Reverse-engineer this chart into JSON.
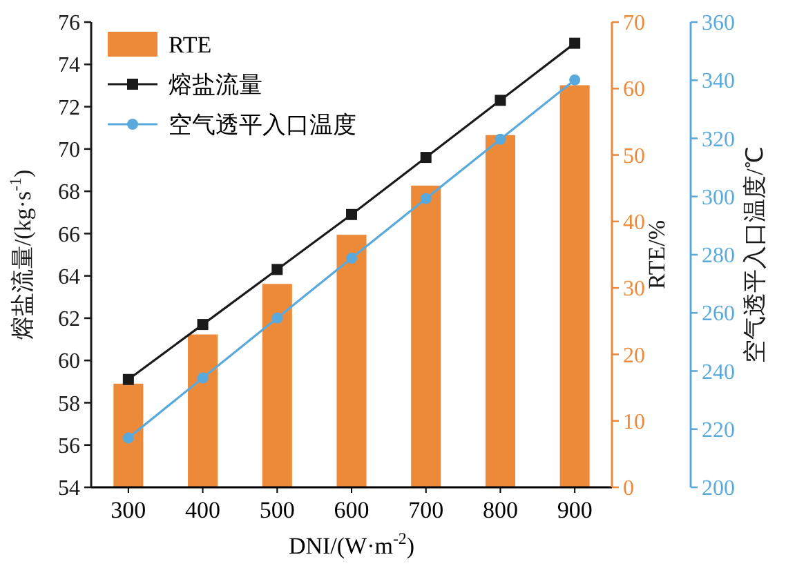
{
  "chart_data": {
    "type": "bar",
    "categories": [
      "300",
      "400",
      "500",
      "600",
      "700",
      "800",
      "900"
    ],
    "xlabel": "DNI/(W·m$^{-2}$)",
    "ylabel": "熔盐流量/(kg·s$^{-1}$)",
    "y2label": "RTE/%",
    "y3label": "空气透平入口温度/℃",
    "ylim": [
      54,
      76
    ],
    "yticks": [
      54,
      56,
      58,
      60,
      62,
      64,
      66,
      68,
      70,
      72,
      74,
      76
    ],
    "y2lim": [
      0,
      70
    ],
    "y2ticks": [
      0,
      10,
      20,
      30,
      40,
      50,
      60,
      70
    ],
    "y3lim": [
      200,
      360
    ],
    "y3ticks": [
      200,
      220,
      240,
      260,
      280,
      300,
      320,
      340,
      360
    ],
    "legend": "top left",
    "grid": false,
    "series": [
      {
        "name": "RTE",
        "axis": "y2",
        "color": "#ed8a3a",
        "values": [
          15.6,
          23.0,
          30.6,
          38.0,
          45.4,
          53.0,
          60.5
        ]
      },
      {
        "name": "熔盐流量",
        "type": "line",
        "axis": "y",
        "color": "#1a1a1a",
        "marker": "square",
        "values": [
          59.1,
          61.7,
          64.3,
          66.9,
          69.6,
          72.3,
          75.0
        ]
      },
      {
        "name": "空气透平入口温度",
        "type": "line",
        "axis": "y3",
        "color": "#5aa9dc",
        "marker": "circle",
        "values": [
          217.0,
          237.6,
          258.2,
          278.8,
          299.3,
          319.7,
          340.1
        ]
      }
    ]
  }
}
